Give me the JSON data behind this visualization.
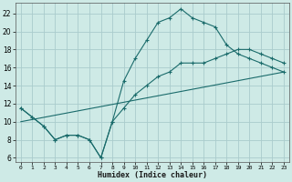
{
  "xlabel": "Humidex (Indice chaleur)",
  "ylabel": "",
  "background_color": "#ceeae6",
  "grid_color": "#aacccc",
  "line_color": "#1a6b6b",
  "xlim": [
    -0.5,
    23.5
  ],
  "ylim": [
    5.5,
    23.2
  ],
  "xticks": [
    0,
    1,
    2,
    3,
    4,
    5,
    6,
    7,
    8,
    9,
    10,
    11,
    12,
    13,
    14,
    15,
    16,
    17,
    18,
    19,
    20,
    21,
    22,
    23
  ],
  "yticks": [
    6,
    8,
    10,
    12,
    14,
    16,
    18,
    20,
    22
  ],
  "line1_x": [
    0,
    1,
    2,
    3,
    4,
    5,
    6,
    7,
    8,
    9,
    10,
    11,
    12,
    13,
    14,
    15,
    16,
    17,
    18,
    19,
    20,
    21,
    22,
    23
  ],
  "line1_y": [
    11.5,
    10.5,
    9.5,
    8.0,
    8.5,
    8.5,
    8.0,
    6.0,
    10.0,
    14.5,
    17.0,
    19.0,
    21.0,
    21.5,
    22.5,
    21.5,
    21.0,
    20.5,
    18.5,
    17.5,
    17.0,
    16.5,
    16.0,
    15.5
  ],
  "line2_x": [
    0,
    1,
    2,
    3,
    4,
    5,
    6,
    7,
    8,
    9,
    10,
    11,
    12,
    13,
    14,
    15,
    16,
    17,
    18,
    19,
    20,
    21,
    22,
    23
  ],
  "line2_y": [
    11.5,
    10.5,
    9.5,
    8.0,
    8.5,
    8.5,
    8.0,
    6.0,
    10.0,
    11.5,
    13.0,
    14.0,
    15.0,
    15.5,
    16.5,
    16.5,
    16.5,
    17.0,
    17.5,
    18.0,
    18.0,
    17.5,
    17.0,
    16.5
  ],
  "line3_x": [
    0,
    23
  ],
  "line3_y": [
    10.0,
    15.5
  ],
  "fig_width": 3.2,
  "fig_height": 2.0,
  "dpi": 100
}
